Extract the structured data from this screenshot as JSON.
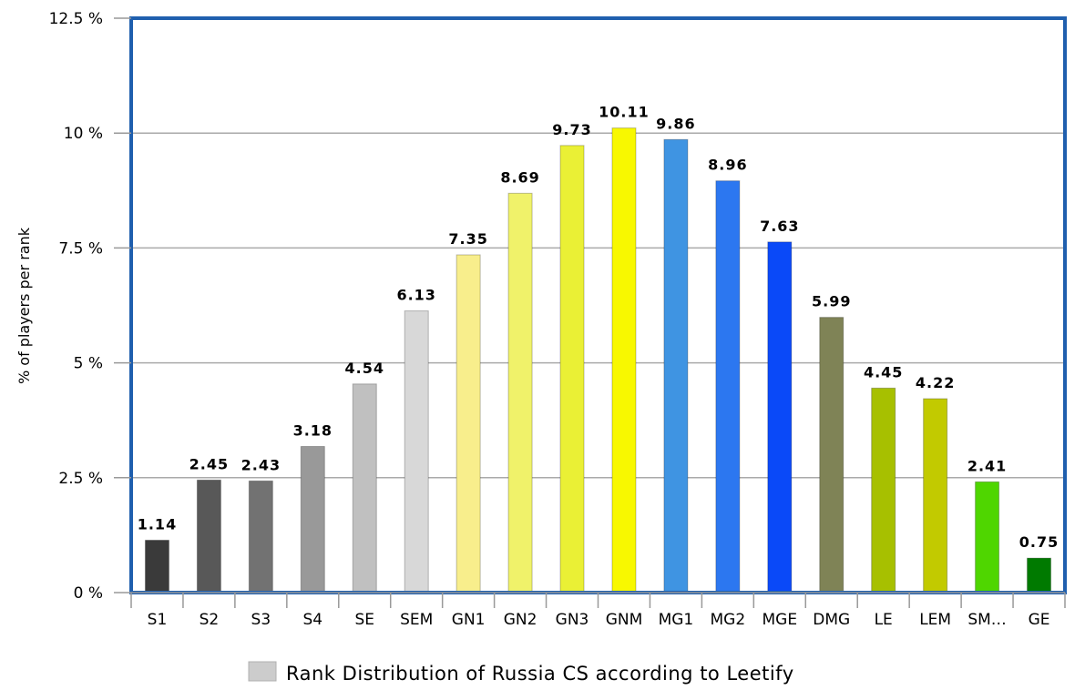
{
  "chart_data": {
    "type": "bar",
    "categories": [
      "S1",
      "S2",
      "S3",
      "S4",
      "SE",
      "SEM",
      "GN1",
      "GN2",
      "GN3",
      "GNM",
      "MG1",
      "MG2",
      "MGE",
      "DMG",
      "LE",
      "LEM",
      "SM…",
      "GE"
    ],
    "values": [
      1.14,
      2.45,
      2.43,
      3.18,
      4.54,
      6.13,
      7.35,
      8.69,
      9.73,
      10.11,
      9.86,
      8.96,
      7.63,
      5.99,
      4.45,
      4.22,
      2.41,
      0.75
    ],
    "value_labels": [
      "1.14",
      "2.45",
      "2.43",
      "3.18",
      "4.54",
      "6.13",
      "7.35",
      "8.69",
      "9.73",
      "10.11",
      "9.86",
      "8.96",
      "7.63",
      "5.99",
      "4.45",
      "4.22",
      "2.41",
      "0.75"
    ],
    "bar_colors": [
      "#3a3a3a",
      "#585858",
      "#727272",
      "#999999",
      "#c0c0c0",
      "#d8d8d8",
      "#f8ee8c",
      "#f0f26a",
      "#eaf035",
      "#f8f800",
      "#3f94e2",
      "#2c77f0",
      "#0a49f8",
      "#7f8356",
      "#a7c000",
      "#c2ca00",
      "#4fd600",
      "#007a00"
    ],
    "ylim": [
      0,
      12.5
    ],
    "yticks": [
      0,
      2.5,
      5,
      7.5,
      10,
      12.5
    ],
    "ytick_labels": [
      "0 %",
      "2.5 %",
      "5 %",
      "7.5 %",
      "10 %",
      "12.5 %"
    ],
    "ylabel": "% of players per rank",
    "xlabel": "",
    "grid": true,
    "legend": {
      "position": "bottom",
      "entries": [
        {
          "label": "Rank Distribution of Russia CS according to Leetify",
          "color": "#cccccc"
        }
      ]
    },
    "colors": {
      "frame": "#1f5fae",
      "grid": "#aaaaaa",
      "axis": "#999999"
    }
  }
}
